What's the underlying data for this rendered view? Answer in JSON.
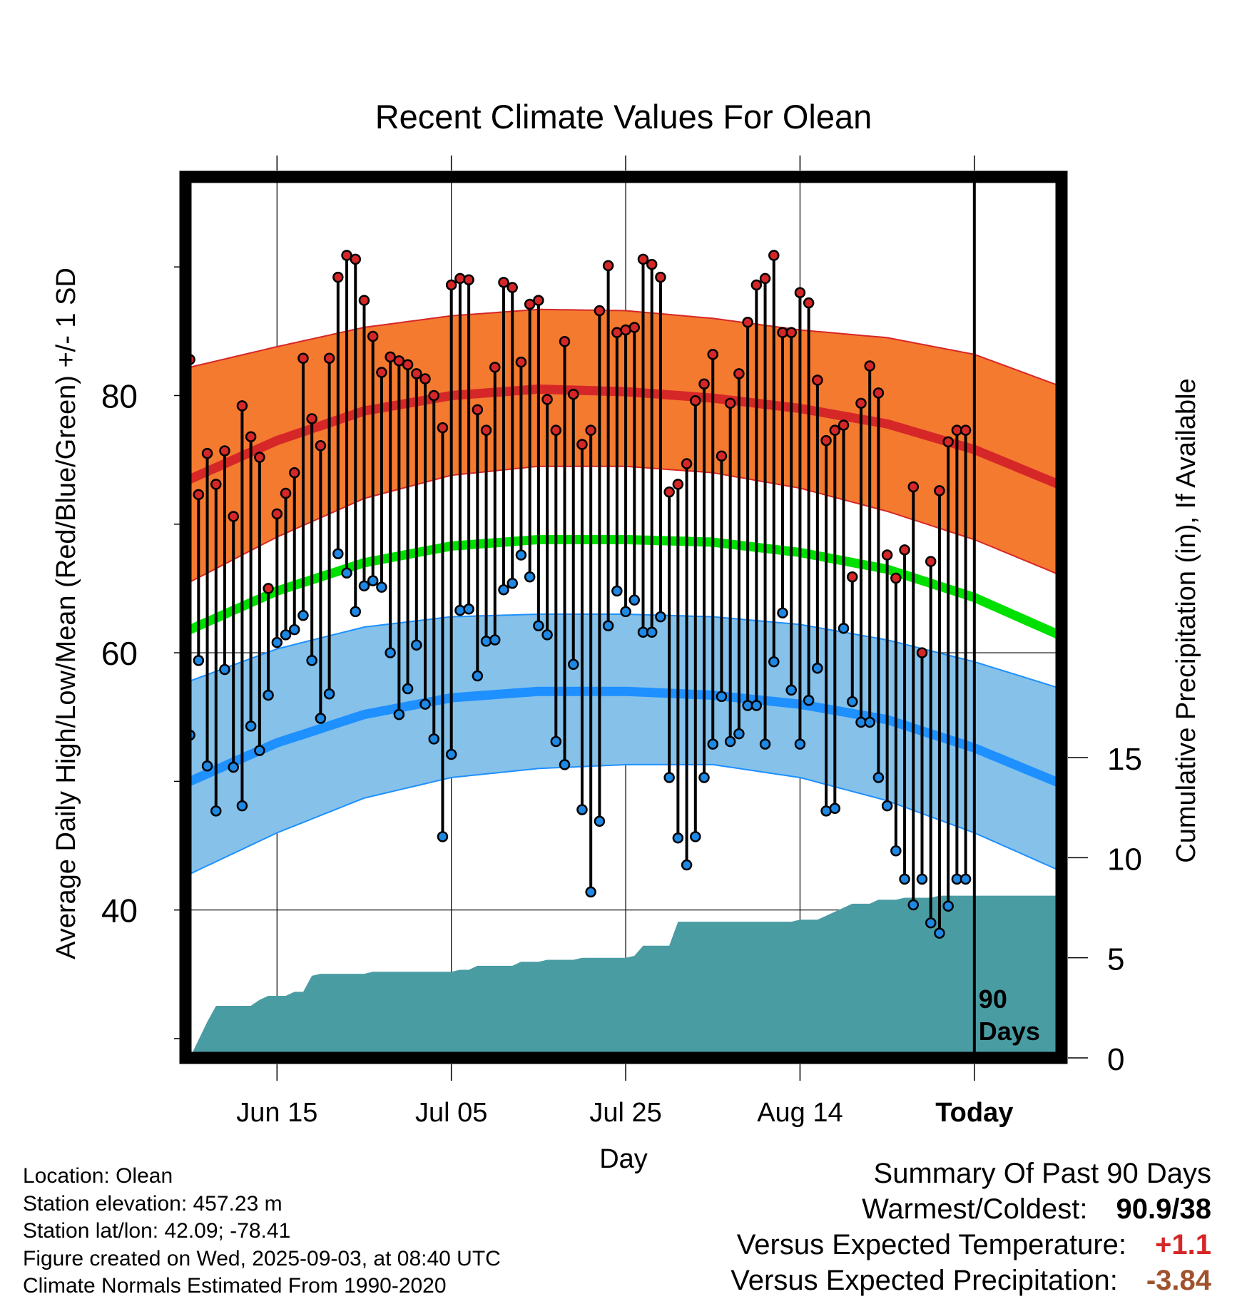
{
  "chart_data": {
    "type": "line",
    "title": "Recent Climate Values For Olean",
    "xlabel": "Day",
    "ylabel_left": "Average Daily High/Low/Mean (Red/Blue/Green) +/- 1 SD",
    "ylabel_right": "Cumulative Precipitation (in), If Available",
    "x_tick_labels": [
      "Jun 15",
      "Jul 05",
      "Jul 25",
      "Aug 14",
      "Today"
    ],
    "x_tick_days": [
      10,
      30,
      50,
      70,
      90
    ],
    "y_left_ticks": [
      40,
      60,
      80
    ],
    "y_left_range": [
      28.5,
      97
    ],
    "y_right_ticks": [
      0,
      5,
      10,
      15
    ],
    "y_right_range": [
      0,
      44
    ],
    "day_range": [
      -0.5,
      100
    ],
    "today_label": "90\nDays",
    "colors": {
      "high_band": "#f47a30",
      "high_mean": "#d62728",
      "low_band": "#85c1e9",
      "low_mean": "#1e90ff",
      "mean_line": "#00e000",
      "precip": "#4a9ca3",
      "high_dot": "#d62728",
      "low_dot": "#1e88e5",
      "positive": "#d62728",
      "negative": "#a0522d"
    },
    "normals": {
      "days": [
        0,
        10,
        20,
        30,
        40,
        50,
        60,
        70,
        80,
        90,
        100
      ],
      "high_mean": [
        73.5,
        76.5,
        78.8,
        80.0,
        80.5,
        80.3,
        79.8,
        79.0,
        77.8,
        75.8,
        73.0
      ],
      "high_sd_upper": [
        82.2,
        83.8,
        85.3,
        86.2,
        86.7,
        86.6,
        86.0,
        85.1,
        84.5,
        83.2,
        80.7
      ],
      "high_sd_lower": [
        65.5,
        69.0,
        72.0,
        73.8,
        74.5,
        74.5,
        74.0,
        72.8,
        71.0,
        68.8,
        66.0
      ],
      "mean": [
        61.8,
        64.8,
        67.0,
        68.3,
        68.8,
        68.8,
        68.6,
        67.8,
        66.5,
        64.3,
        61.3
      ],
      "low_mean": [
        50.0,
        53.0,
        55.2,
        56.5,
        57.0,
        57.0,
        56.7,
        56.0,
        54.8,
        52.6,
        49.8
      ],
      "low_sd_upper": [
        57.8,
        60.3,
        62.0,
        62.8,
        63.0,
        63.0,
        62.8,
        62.2,
        61.0,
        59.3,
        57.2
      ],
      "low_sd_lower": [
        42.8,
        46.0,
        48.7,
        50.3,
        51.0,
        51.3,
        51.3,
        50.3,
        48.5,
        46.0,
        43.0
      ]
    },
    "days": [
      0,
      1,
      2,
      3,
      4,
      5,
      6,
      7,
      8,
      9,
      10,
      11,
      12,
      13,
      14,
      15,
      16,
      17,
      18,
      19,
      20,
      21,
      22,
      23,
      24,
      25,
      26,
      27,
      28,
      29,
      30,
      31,
      32,
      33,
      34,
      35,
      36,
      37,
      38,
      39,
      40,
      41,
      42,
      43,
      44,
      45,
      46,
      47,
      48,
      49,
      50,
      51,
      52,
      53,
      54,
      55,
      56,
      57,
      58,
      59,
      60,
      61,
      62,
      63,
      64,
      65,
      66,
      67,
      68,
      69,
      70,
      71,
      72,
      73,
      74,
      75,
      76,
      77,
      78,
      79,
      80,
      81,
      82,
      83,
      84,
      85,
      86,
      87,
      88,
      89
    ],
    "highs": [
      82.8,
      72.3,
      75.5,
      73.1,
      75.7,
      70.6,
      79.2,
      76.8,
      75.2,
      65.0,
      70.8,
      72.4,
      74.0,
      82.9,
      78.2,
      76.1,
      82.9,
      89.2,
      90.9,
      90.6,
      87.4,
      84.6,
      81.8,
      83.0,
      82.7,
      82.4,
      81.7,
      81.3,
      80.0,
      77.5,
      88.6,
      89.1,
      89.0,
      78.9,
      77.3,
      82.2,
      88.8,
      88.4,
      82.6,
      87.1,
      87.4,
      79.7,
      77.3,
      84.2,
      80.1,
      76.2,
      77.3,
      86.6,
      90.1,
      84.9,
      85.1,
      85.3,
      90.6,
      90.2,
      89.2,
      72.5,
      73.1,
      74.7,
      79.6,
      80.9,
      83.2,
      75.3,
      79.4,
      81.7,
      85.7,
      88.6,
      89.1,
      90.9,
      84.9,
      84.9,
      88.0,
      87.2,
      81.2,
      76.5,
      77.3,
      77.7,
      65.9,
      79.4,
      82.3,
      80.2,
      67.6,
      65.8,
      68.0,
      72.9,
      60.0,
      67.1,
      72.6,
      76.4,
      77.3,
      77.3
    ],
    "lows": [
      53.6,
      59.4,
      51.2,
      47.7,
      58.7,
      51.1,
      48.1,
      54.3,
      52.4,
      56.7,
      60.8,
      61.4,
      61.8,
      62.9,
      59.4,
      54.9,
      56.8,
      67.7,
      66.2,
      63.2,
      65.2,
      65.6,
      65.1,
      60.0,
      55.2,
      57.2,
      60.6,
      56.0,
      53.3,
      45.7,
      52.1,
      63.3,
      63.4,
      58.2,
      60.9,
      61.0,
      64.9,
      65.4,
      67.6,
      65.9,
      62.1,
      61.4,
      53.1,
      51.3,
      59.1,
      47.8,
      41.4,
      46.9,
      62.1,
      64.8,
      63.2,
      64.1,
      61.6,
      61.6,
      62.8,
      50.3,
      45.6,
      43.5,
      45.7,
      50.3,
      52.9,
      56.6,
      53.1,
      53.7,
      55.9,
      55.9,
      52.9,
      59.3,
      63.1,
      57.1,
      52.9,
      56.3,
      58.8,
      47.7,
      47.9,
      61.9,
      56.2,
      54.6,
      54.6,
      50.3,
      48.1,
      44.6,
      42.4,
      40.4,
      42.4,
      39.0,
      38.2,
      40.3,
      42.4,
      42.4
    ],
    "precip_cum": {
      "days": [
        0,
        1,
        2,
        3,
        4,
        5,
        6,
        7,
        8,
        9,
        10,
        11,
        12,
        13,
        14,
        15,
        16,
        17,
        18,
        19,
        20,
        21,
        22,
        23,
        24,
        25,
        26,
        27,
        28,
        29,
        30,
        31,
        32,
        33,
        34,
        35,
        36,
        37,
        38,
        39,
        40,
        41,
        42,
        43,
        44,
        45,
        46,
        47,
        48,
        49,
        50,
        51,
        52,
        53,
        54,
        55,
        56,
        57,
        58,
        59,
        60,
        61,
        62,
        63,
        64,
        65,
        66,
        67,
        68,
        69,
        70,
        71,
        72,
        73,
        74,
        75,
        76,
        77,
        78,
        79,
        80,
        81,
        82,
        83,
        84,
        85,
        86,
        87,
        88,
        89,
        90
      ],
      "values": [
        0.0,
        0.9,
        1.8,
        2.6,
        2.6,
        2.6,
        2.6,
        2.6,
        2.9,
        3.1,
        3.1,
        3.1,
        3.3,
        3.3,
        4.1,
        4.2,
        4.2,
        4.2,
        4.2,
        4.2,
        4.2,
        4.3,
        4.3,
        4.3,
        4.3,
        4.3,
        4.3,
        4.3,
        4.3,
        4.3,
        4.3,
        4.4,
        4.4,
        4.6,
        4.6,
        4.6,
        4.6,
        4.6,
        4.8,
        4.8,
        4.8,
        4.9,
        4.9,
        4.9,
        4.9,
        5.0,
        5.0,
        5.0,
        5.0,
        5.0,
        5.0,
        5.1,
        5.6,
        5.6,
        5.6,
        5.6,
        6.8,
        6.8,
        6.8,
        6.8,
        6.8,
        6.8,
        6.8,
        6.8,
        6.8,
        6.8,
        6.8,
        6.8,
        6.8,
        6.8,
        6.9,
        6.9,
        6.9,
        7.1,
        7.3,
        7.5,
        7.7,
        7.7,
        7.7,
        7.9,
        7.9,
        7.9,
        8.0,
        8.0,
        8.0,
        8.0,
        8.1,
        8.1,
        8.1,
        8.1,
        8.1
      ]
    }
  },
  "info": {
    "location": "Location: Olean",
    "elevation": "Station elevation: 457.23 m",
    "latlon": "Station lat/lon: 42.09; -78.41",
    "created": "Figure created on Wed, 2025-09-03, at 08:40 UTC",
    "normals": "Climate Normals Estimated From 1990-2020"
  },
  "summary": {
    "title": "Summary Of Past 90 Days",
    "warm_cold_label": "Warmest/Coldest:",
    "warm_cold_value": "90.9/38",
    "temp_label": "Versus Expected Temperature:",
    "temp_value": "+1.1",
    "precip_label": "Versus Expected Precipitation:",
    "precip_value": "-3.84"
  }
}
